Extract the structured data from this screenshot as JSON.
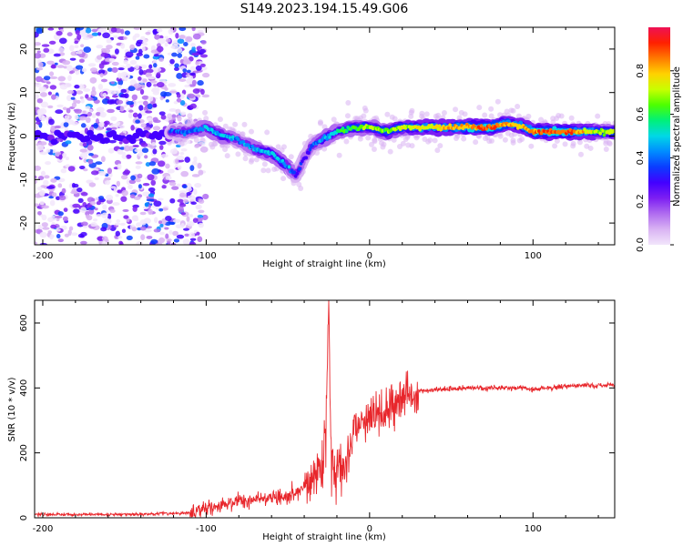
{
  "title": "S149.2023.194.15.49.G06",
  "colors": {
    "snr_line": "#e8262b",
    "colormap": [
      "#f2e6fb",
      "#d9b3f3",
      "#b06cf0",
      "#7d1ff2",
      "#4300ff",
      "#0b3cff",
      "#008cff",
      "#00d8e6",
      "#00f07a",
      "#4dff00",
      "#c8ff00",
      "#ffd200",
      "#ff7a00",
      "#ff2000",
      "#ee1156"
    ]
  },
  "chart_data": [
    {
      "type": "heatmap",
      "xlabel": "Height of straight line (km)",
      "ylabel": "Frequency (Hz)",
      "xlim": [
        -205,
        150
      ],
      "ylim": [
        -25,
        25
      ],
      "xticks": [
        -200,
        -100,
        0,
        100
      ],
      "yticks": [
        -20,
        -10,
        0,
        10,
        20
      ],
      "colorbar": {
        "label": "Normalized spectral amplitude",
        "range": [
          0,
          1
        ],
        "ticks": [
          0.0,
          0.2,
          0.4,
          0.6,
          0.8
        ]
      },
      "ridge": {
        "x": [
          -120,
          -110,
          -100,
          -90,
          -80,
          -70,
          -60,
          -50,
          -45,
          -40,
          -35,
          -30,
          -20,
          -10,
          0,
          10,
          20,
          40,
          60,
          75,
          85,
          95,
          100,
          120,
          140,
          150
        ],
        "y": [
          1,
          1,
          2,
          0,
          -1,
          -3,
          -4,
          -7,
          -9,
          -5,
          -2,
          -1,
          1,
          2,
          2,
          1,
          2,
          2,
          2,
          2,
          3,
          2,
          1,
          1,
          1,
          1
        ],
        "amplitude": [
          0.35,
          0.4,
          0.45,
          0.5,
          0.4,
          0.45,
          0.5,
          0.45,
          0.35,
          0.3,
          0.35,
          0.45,
          0.55,
          0.65,
          0.7,
          0.65,
          0.7,
          0.75,
          0.85,
          0.9,
          0.8,
          0.8,
          0.85,
          0.9,
          0.7,
          0.65
        ]
      },
      "noise_region": [
        -205,
        -100
      ],
      "noise_band": {
        "x": [
          -205,
          -120
        ],
        "y": 0
      }
    },
    {
      "type": "line",
      "xlabel": "Height of straight line (km)",
      "ylabel": "SNR (10 * v/v)",
      "xlim": [
        -205,
        150
      ],
      "ylim": [
        0,
        670
      ],
      "xticks": [
        -200,
        -100,
        0,
        100
      ],
      "yticks": [
        0,
        200,
        400,
        600
      ],
      "series": [
        {
          "envelope_x": [
            -205,
            -150,
            -110,
            -90,
            -70,
            -50,
            -40,
            -32,
            -28,
            -26,
            -25,
            -24,
            -22,
            -18,
            -15,
            -10,
            0,
            10,
            20,
            30,
            40,
            60,
            80,
            95,
            100,
            120,
            150
          ],
          "envelope_y": [
            10,
            10,
            15,
            40,
            60,
            70,
            90,
            150,
            220,
            400,
            660,
            300,
            150,
            190,
            160,
            270,
            300,
            330,
            370,
            390,
            395,
            400,
            400,
            400,
            395,
            405,
            410
          ]
        }
      ]
    }
  ]
}
